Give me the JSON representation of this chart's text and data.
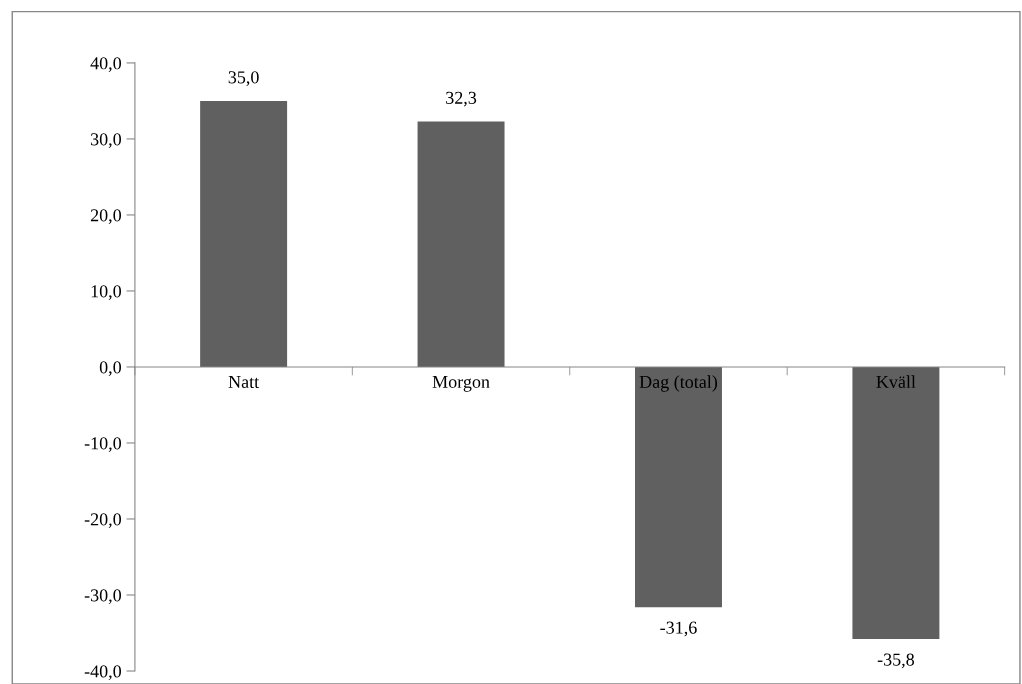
{
  "chart_data": {
    "type": "bar",
    "categories": [
      "Natt",
      "Morgon",
      "Dag (total)",
      "Kväll"
    ],
    "values": [
      35.0,
      32.3,
      -31.6,
      -35.8
    ],
    "value_labels": [
      "35,0",
      "32,3",
      "-31,6",
      "-35,8"
    ],
    "color": "#606060",
    "ylim": [
      -40,
      40
    ],
    "yticks": [
      {
        "value": -40,
        "label": "-40,0"
      },
      {
        "value": -30,
        "label": "-30,0"
      },
      {
        "value": -20,
        "label": "-20,0"
      },
      {
        "value": -10,
        "label": "-10,0"
      },
      {
        "value": 0,
        "label": "0,0"
      },
      {
        "value": 10,
        "label": "10,0"
      },
      {
        "value": 20,
        "label": "20,0"
      },
      {
        "value": 30,
        "label": "30,0"
      },
      {
        "value": 40,
        "label": "40,0"
      }
    ],
    "grid": false,
    "legend": false
  }
}
